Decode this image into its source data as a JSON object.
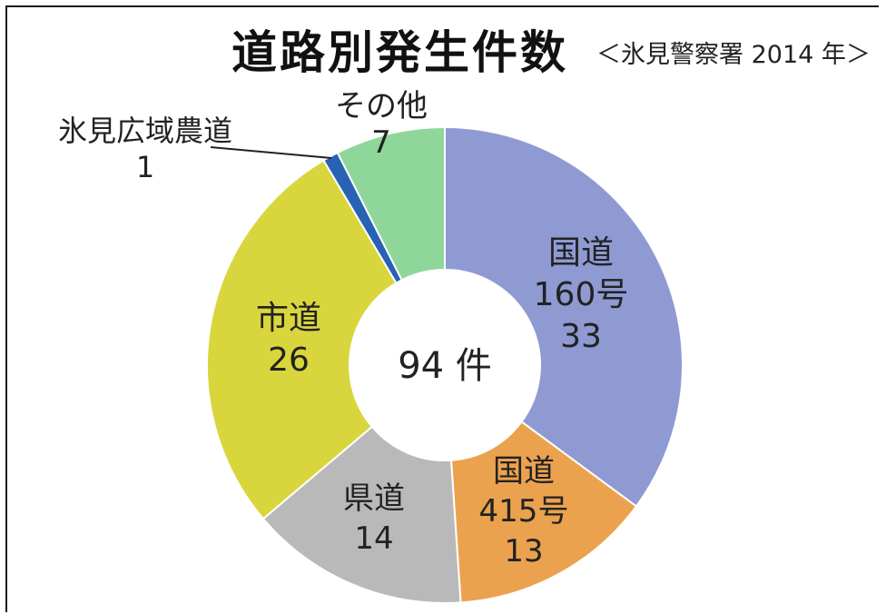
{
  "chart_data": {
    "type": "pie",
    "title": "道路別発生件数",
    "subtitle": "＜氷見警察署 2014 年＞",
    "center_label": "94 件",
    "slices": [
      {
        "label": "国道160号",
        "value": 33,
        "color": "#8f9ad3"
      },
      {
        "label": "国道415号",
        "value": 13,
        "color": "#eba24e"
      },
      {
        "label": "県道",
        "value": 14,
        "color": "#b9b9b9"
      },
      {
        "label": "市道",
        "value": 26,
        "color": "#d8d63c"
      },
      {
        "label": "氷見広域農道",
        "value": 1,
        "color": "#2762b4"
      },
      {
        "label": "その他",
        "value": 7,
        "color": "#8fd69a"
      }
    ],
    "slice_text": [
      [
        "国道",
        "160号",
        "33"
      ],
      [
        "国道",
        "415号",
        "13"
      ],
      [
        "県道",
        "14"
      ],
      [
        "市道",
        "26"
      ],
      [
        "氷見広域農道",
        "1"
      ],
      [
        "その他",
        "7"
      ]
    ]
  }
}
